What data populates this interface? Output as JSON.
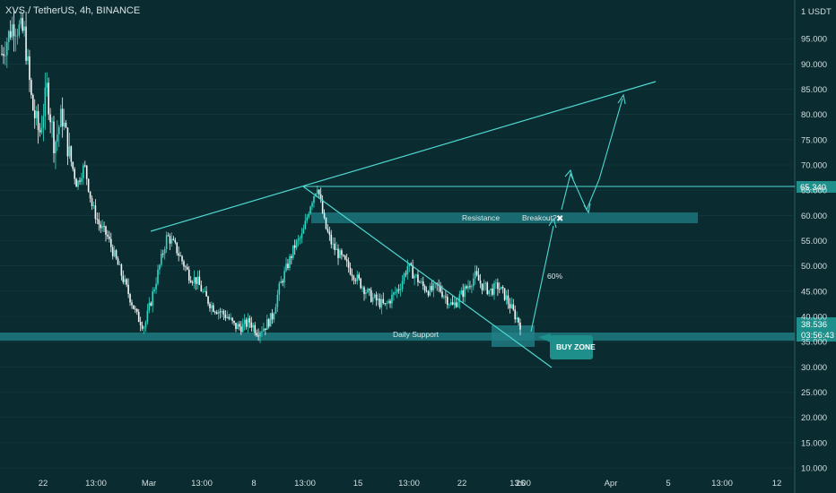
{
  "header": {
    "title": "XVS / TetherUS, 4h, BINANCE"
  },
  "colors": {
    "background": "#0a2b30",
    "accent": "#4fd8d0",
    "candle_up": "#2fd6c3",
    "candle_down": "#f2f6f6",
    "zone": "#1f7f86",
    "label_bg": "#1e8f8a"
  },
  "chart_data": {
    "type": "candlestick",
    "title": "XVS / TetherUS, 4h, BINANCE",
    "y_axis": {
      "unit": "1 USDT",
      "ylim": [
        10,
        100
      ],
      "ticks": [
        "95.000",
        "90.000",
        "85.000",
        "80.000",
        "75.000",
        "70.000",
        "65.000",
        "60.000",
        "55.000",
        "50.000",
        "45.000",
        "40.000",
        "35.000",
        "30.000",
        "25.000",
        "20.000",
        "15.000",
        "10.000"
      ]
    },
    "x_axis": {
      "ticks": [
        "22",
        "13:00",
        "Mar",
        "13:00",
        "8",
        "13:00",
        "15",
        "13:00",
        "22",
        "13:00",
        "26",
        "Apr",
        "5",
        "13:00",
        "12"
      ]
    },
    "last_price": "38.536",
    "countdown": "03:56:43",
    "level_marker": "65.340",
    "price_trace": [
      [
        0,
        92
      ],
      [
        3,
        98
      ],
      [
        6,
        96
      ],
      [
        8,
        82
      ],
      [
        10,
        76
      ],
      [
        12,
        85
      ],
      [
        14,
        74
      ],
      [
        16,
        80
      ],
      [
        18,
        72
      ],
      [
        20,
        66
      ],
      [
        22,
        70
      ],
      [
        24,
        62
      ],
      [
        26,
        58
      ],
      [
        28,
        56
      ],
      [
        30,
        52
      ],
      [
        32,
        48
      ],
      [
        34,
        44
      ],
      [
        36,
        40
      ],
      [
        38,
        38
      ],
      [
        40,
        44
      ],
      [
        42,
        50
      ],
      [
        44,
        56
      ],
      [
        46,
        54
      ],
      [
        48,
        51
      ],
      [
        50,
        48
      ],
      [
        52,
        47
      ],
      [
        54,
        44
      ],
      [
        56,
        42
      ],
      [
        58,
        41
      ],
      [
        60,
        40
      ],
      [
        62,
        38
      ],
      [
        64,
        38
      ],
      [
        66,
        39
      ],
      [
        68,
        37
      ],
      [
        70,
        38
      ],
      [
        72,
        40
      ],
      [
        74,
        46
      ],
      [
        76,
        50
      ],
      [
        78,
        54
      ],
      [
        80,
        56
      ],
      [
        82,
        62
      ],
      [
        84,
        66
      ],
      [
        86,
        58
      ],
      [
        88,
        54
      ],
      [
        90,
        52
      ],
      [
        92,
        50
      ],
      [
        94,
        48
      ],
      [
        96,
        46
      ],
      [
        98,
        44
      ],
      [
        100,
        43
      ],
      [
        102,
        42
      ],
      [
        104,
        44
      ],
      [
        106,
        46
      ],
      [
        108,
        50
      ],
      [
        110,
        48
      ],
      [
        112,
        46
      ],
      [
        114,
        45
      ],
      [
        116,
        46
      ],
      [
        118,
        44
      ],
      [
        120,
        42
      ],
      [
        122,
        44
      ],
      [
        124,
        46
      ],
      [
        126,
        48
      ],
      [
        128,
        46
      ],
      [
        130,
        45
      ],
      [
        132,
        46
      ],
      [
        134,
        44
      ],
      [
        136,
        41
      ],
      [
        138,
        38.5
      ]
    ],
    "annotations": {
      "resistance": "Resistance",
      "breakout": "Breakout?",
      "cross": "✖",
      "percent": "60%",
      "support": "Daily Support",
      "buy_zone": "BUY ZONE"
    }
  }
}
